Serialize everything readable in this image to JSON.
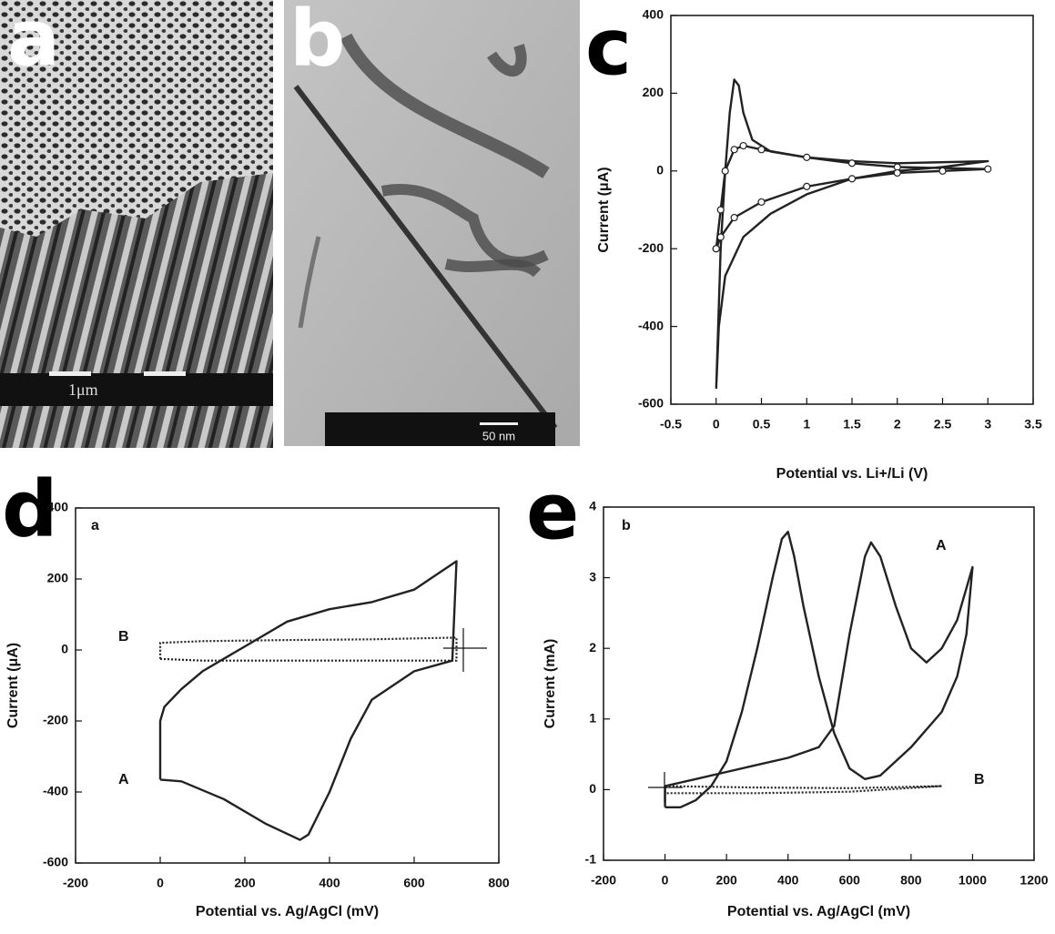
{
  "panels": {
    "a": {
      "label": "a",
      "scale_bar": "1μm"
    },
    "b": {
      "label": "b",
      "scale_bar": "50 nm"
    },
    "c": {
      "label": "c"
    },
    "d": {
      "label": "d"
    },
    "e": {
      "label": "e"
    }
  },
  "chart_data": [
    {
      "type": "line",
      "x_label": "Potential vs. Li+/Li (V)",
      "y_label": "Current (μA)",
      "xlim": [
        -0.5,
        3.5
      ],
      "ylim": [
        -600,
        400
      ],
      "xticks": [
        -0.5,
        0,
        0.5,
        1,
        1.5,
        2,
        2.5,
        3,
        3.5
      ],
      "yticks": [
        -600,
        -400,
        -200,
        0,
        200,
        400
      ],
      "series": [
        {
          "color": "#222",
          "marker": "none",
          "x": [
            0,
            0.05,
            0.1,
            0.15,
            0.2,
            0.25,
            0.3,
            0.4,
            0.6,
            1,
            1.5,
            2,
            3,
            2.5,
            2,
            1.5,
            1,
            0.6,
            0.3,
            0.1,
            0.03,
            0
          ],
          "values": [
            -560,
            -200,
            0,
            150,
            235,
            220,
            150,
            80,
            50,
            35,
            25,
            20,
            25,
            10,
            0,
            -20,
            -60,
            -110,
            -170,
            -270,
            -400,
            -560
          ]
        },
        {
          "color": "#222",
          "marker": "circle",
          "x": [
            0,
            0.05,
            0.1,
            0.2,
            0.3,
            0.5,
            1,
            1.5,
            2,
            3,
            2.5,
            2,
            1.5,
            1,
            0.5,
            0.2,
            0.05,
            0
          ],
          "values": [
            -200,
            -100,
            0,
            55,
            65,
            55,
            35,
            20,
            10,
            5,
            0,
            -5,
            -20,
            -40,
            -80,
            -120,
            -170,
            -200
          ]
        }
      ]
    },
    {
      "type": "line",
      "x_label": "Potential vs. Ag/AgCl (mV)",
      "y_label": "Current (μA)",
      "inner_label": "a",
      "xlim": [
        -200,
        800
      ],
      "ylim": [
        -600,
        400
      ],
      "xticks": [
        -200,
        0,
        200,
        400,
        600,
        800
      ],
      "yticks": [
        -600,
        -400,
        -200,
        0,
        200,
        400
      ],
      "series": [
        {
          "name": "A",
          "color": "#222",
          "style": "solid",
          "x": [
            0,
            0,
            10,
            50,
            100,
            200,
            300,
            400,
            500,
            600,
            700,
            690,
            600,
            500,
            450,
            400,
            350,
            330,
            250,
            150,
            50,
            0
          ],
          "values": [
            -365,
            -200,
            -160,
            -110,
            -60,
            10,
            80,
            115,
            135,
            170,
            250,
            -30,
            -60,
            -140,
            -250,
            -400,
            -520,
            -535,
            -490,
            -420,
            -370,
            -365
          ]
        },
        {
          "name": "B",
          "color": "#222",
          "style": "dotted",
          "x": [
            0,
            0,
            100,
            300,
            500,
            700,
            700,
            500,
            300,
            100,
            0
          ],
          "values": [
            -25,
            20,
            25,
            28,
            30,
            35,
            -30,
            -30,
            -30,
            -30,
            -25
          ]
        }
      ]
    },
    {
      "type": "line",
      "x_label": "Potential vs. Ag/AgCl (mV)",
      "y_label": "Current (mA)",
      "inner_label": "b",
      "xlim": [
        -200,
        1200
      ],
      "ylim": [
        -1,
        4
      ],
      "xticks": [
        -200,
        0,
        200,
        400,
        600,
        800,
        1000,
        1200
      ],
      "yticks": [
        -1,
        0,
        1,
        2,
        3,
        4
      ],
      "series": [
        {
          "name": "A",
          "color": "#222",
          "style": "solid",
          "x": [
            0,
            0,
            100,
            200,
            300,
            400,
            500,
            550,
            600,
            650,
            670,
            700,
            750,
            800,
            850,
            900,
            950,
            1000,
            980,
            950,
            900,
            800,
            700,
            650,
            600,
            550,
            500,
            450,
            420,
            400,
            380,
            350,
            300,
            250,
            200,
            150,
            100,
            50,
            0
          ],
          "values": [
            -0.25,
            0.05,
            0.15,
            0.25,
            0.35,
            0.45,
            0.6,
            0.9,
            2.2,
            3.3,
            3.5,
            3.3,
            2.6,
            2.0,
            1.8,
            2.0,
            2.4,
            3.15,
            2.2,
            1.6,
            1.1,
            0.6,
            0.2,
            0.15,
            0.3,
            0.8,
            1.6,
            2.6,
            3.3,
            3.65,
            3.55,
            3.0,
            2.0,
            1.1,
            0.4,
            0.05,
            -0.15,
            -0.25,
            -0.25
          ]
        },
        {
          "name": "B",
          "color": "#222",
          "style": "dotted",
          "x": [
            0,
            0,
            300,
            600,
            900,
            600,
            300,
            0
          ],
          "values": [
            -0.05,
            0.05,
            0.03,
            0.02,
            0.05,
            -0.03,
            -0.05,
            -0.05
          ]
        }
      ]
    }
  ]
}
